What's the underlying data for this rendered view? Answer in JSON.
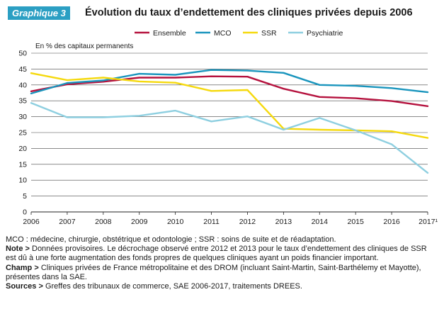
{
  "header": {
    "badge": "Graphique 3",
    "title": "Évolution du taux d’endettement des cliniques privées depuis 2006"
  },
  "chart_data": {
    "type": "line",
    "title": "Évolution du taux d’endettement des cliniques privées depuis 2006",
    "ylabel": "En % des capitaux permanents",
    "xlabel": "",
    "categories": [
      "2006",
      "2007",
      "2008",
      "2009",
      "2010",
      "2011",
      "2012",
      "2013",
      "2014",
      "2015",
      "2016",
      "2017¹"
    ],
    "ylim": [
      0,
      50
    ],
    "yticks": [
      0,
      5,
      10,
      15,
      20,
      25,
      30,
      35,
      40,
      45,
      50
    ],
    "grid": true,
    "legend_position": "top",
    "series": [
      {
        "name": "Ensemble",
        "color": "#b5123e",
        "values": [
          38,
          40.2,
          41,
          42.3,
          42.3,
          42.7,
          42.6,
          38.8,
          36.2,
          35.8,
          34.9,
          33.3
        ]
      },
      {
        "name": "MCO",
        "color": "#1a95bd",
        "values": [
          37.3,
          40.6,
          41.4,
          43.5,
          43.2,
          44.7,
          44.5,
          43.8,
          40,
          39.7,
          39,
          37.7
        ]
      },
      {
        "name": "SSR",
        "color": "#f5d90e",
        "values": [
          43.7,
          41.5,
          42.3,
          41.1,
          40.7,
          38.1,
          38.4,
          26.2,
          25.9,
          25.7,
          25.4,
          23.3
        ]
      },
      {
        "name": "Psychiatrie",
        "color": "#8ecfe0",
        "values": [
          34.3,
          29.8,
          29.8,
          30.3,
          31.9,
          28.5,
          30.1,
          25.9,
          29.6,
          25.7,
          21.3,
          12.3
        ]
      }
    ]
  },
  "notes": {
    "line1": "MCO : médecine, chirurgie, obstétrique et odontologie ; SSR : soins de suite et de réadaptation.",
    "note_label": "Note >",
    "note_text": "Données provisoires. Le décrochage observé entre 2012 et 2013 pour le taux d’endettement des cliniques de SSR est dû à une forte augmentation des fonds propres de quelques cliniques ayant un poids financier important.",
    "champ_label": "Champ >",
    "champ_text": "Cliniques privées de France métropolitaine et des DROM (incluant Saint-Martin, Saint-Barthélemy et Mayotte), présentes dans la SAE.",
    "sources_label": "Sources >",
    "sources_text": "Greffes des tribunaux de commerce, SAE 2006-2017, traitements DREES."
  }
}
